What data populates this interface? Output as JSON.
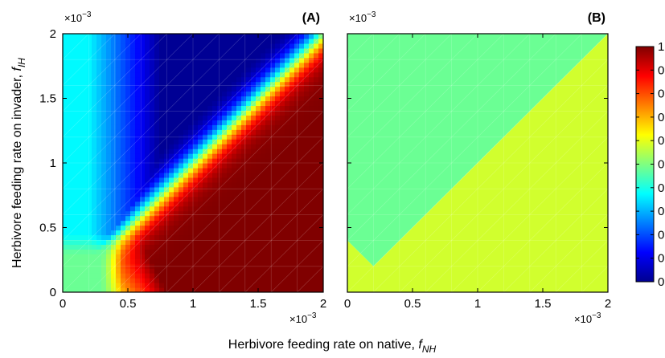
{
  "chart_data": {
    "type": "heatmap",
    "shared": {
      "xlabel_main": "Herbivore feeding rate on native, ",
      "xlabel_var": "f",
      "xlabel_sub": "NH",
      "ylabel_main": "Herbivore feeding rate on invader, ",
      "ylabel_var": "f",
      "ylabel_sub": "IH",
      "xlim": [
        0,
        0.002
      ],
      "ylim": [
        0,
        0.002
      ],
      "multiplier": "×10",
      "multiplier_exp": "−3",
      "x_ticks": [
        0,
        0.0005,
        0.001,
        0.0015,
        0.002
      ],
      "x_tick_labels": [
        "0",
        "0.5",
        "1",
        "1.5",
        "2"
      ],
      "y_ticks": [
        0,
        0.0005,
        0.001,
        0.0015,
        0.002
      ],
      "y_tick_labels": [
        "0",
        "0.5",
        "1",
        "1.5",
        "2"
      ],
      "colormap": "jet",
      "colorbar_range": [
        0,
        1
      ],
      "colorbar_tick_labels": [
        "0",
        "0.",
        "0.",
        "0.",
        "0.",
        "0.",
        "0.",
        "0.",
        "0.",
        "0.",
        "1"
      ]
    },
    "panels": [
      {
        "label": "(A)",
        "description": "Approximate outcome values over the grid (x = f_NH, y = f_IH): low (blue) above the diagonal, high (red) below it, with a transition band along f_IH ≈ f_NH and a mid-valued (green) region near the origin.",
        "grid_x": [
          0,
          0.0002,
          0.0004,
          0.0006,
          0.0008,
          0.001,
          0.0012,
          0.0014,
          0.0016,
          0.0018,
          0.002
        ],
        "grid_y": [
          0,
          0.0002,
          0.0004,
          0.0006,
          0.0008,
          0.001,
          0.0012,
          0.0014,
          0.0016,
          0.0018,
          0.002
        ]
      },
      {
        "label": "(B)",
        "upper_value": 0.48,
        "lower_value": 0.58,
        "boundary": [
          [
            0,
            0.0004
          ],
          [
            0.0002,
            0.0002
          ],
          [
            0.002,
            0.002
          ]
        ]
      }
    ]
  }
}
